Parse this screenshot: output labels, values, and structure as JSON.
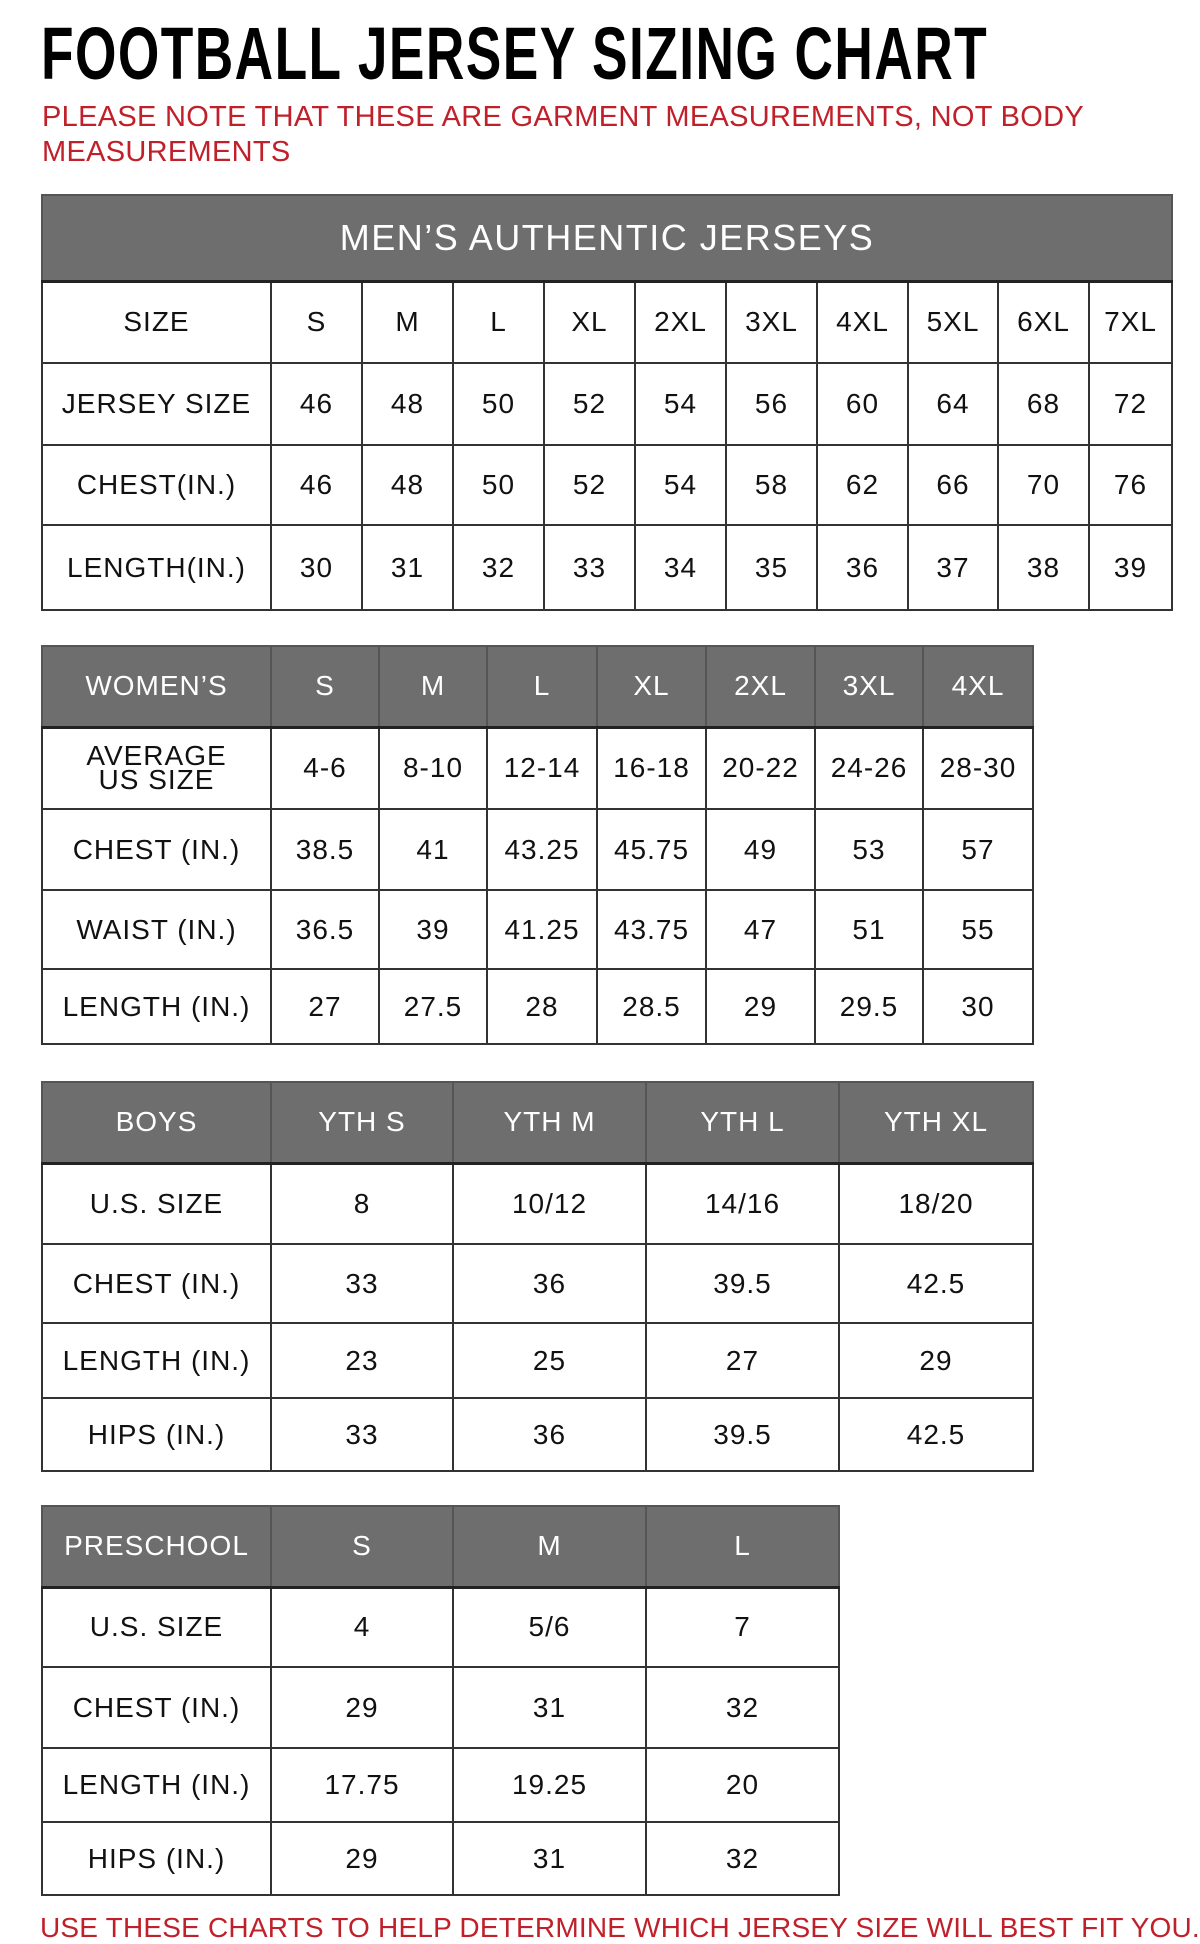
{
  "title": "FOOTBALL JERSEY SIZING CHART",
  "note": "PLEASE NOTE THAT THESE ARE GARMENT MEASUREMENTS, NOT BODY MEASUREMENTS",
  "footer": "USE THESE CHARTS TO HELP DETERMINE WHICH JERSEY SIZE WILL BEST FIT YOU.",
  "colors": {
    "header_bg": "#6e6e6e",
    "note_red": "#c0202a"
  },
  "tables": [
    {
      "banner": "MEN’S AUTHENTIC JERSEYS",
      "header": [
        "SIZE",
        "S",
        "M",
        "L",
        "XL",
        "2XL",
        "3XL",
        "4XL",
        "5XL",
        "6XL",
        "7XL"
      ],
      "header_style": "plain",
      "rows": [
        [
          "JERSEY SIZE",
          "46",
          "48",
          "50",
          "52",
          "54",
          "56",
          "60",
          "64",
          "68",
          "72"
        ],
        [
          "CHEST(IN.)",
          "46",
          "48",
          "50",
          "52",
          "54",
          "58",
          "62",
          "66",
          "70",
          "76"
        ],
        [
          "LENGTH(IN.)",
          "30",
          "31",
          "32",
          "33",
          "34",
          "35",
          "36",
          "37",
          "38",
          "39"
        ]
      ]
    },
    {
      "header": [
        "WOMEN’S",
        "S",
        "M",
        "L",
        "XL",
        "2XL",
        "3XL",
        "4XL"
      ],
      "header_style": "gray",
      "rows": [
        [
          "AVERAGE US SIZE",
          "4-6",
          "8-10",
          "12-14",
          "16-18",
          "20-22",
          "24-26",
          "28-30"
        ],
        [
          "CHEST (IN.)",
          "38.5",
          "41",
          "43.25",
          "45.75",
          "49",
          "53",
          "57"
        ],
        [
          "WAIST (IN.)",
          "36.5",
          "39",
          "41.25",
          "43.75",
          "47",
          "51",
          "55"
        ],
        [
          "LENGTH (IN.)",
          "27",
          "27.5",
          "28",
          "28.5",
          "29",
          "29.5",
          "30"
        ]
      ]
    },
    {
      "header": [
        "BOYS",
        "YTH S",
        "YTH M",
        "YTH L",
        "YTH XL"
      ],
      "header_style": "gray",
      "rows": [
        [
          "U.S. SIZE",
          "8",
          "10/12",
          "14/16",
          "18/20"
        ],
        [
          "CHEST (IN.)",
          "33",
          "36",
          "39.5",
          "42.5"
        ],
        [
          "LENGTH (IN.)",
          "23",
          "25",
          "27",
          "29"
        ],
        [
          "HIPS (IN.)",
          "33",
          "36",
          "39.5",
          "42.5"
        ]
      ]
    },
    {
      "header": [
        "PRESCHOOL",
        "S",
        "M",
        "L"
      ],
      "header_style": "gray",
      "rows": [
        [
          "U.S. SIZE",
          "4",
          "5/6",
          "7"
        ],
        [
          "CHEST (IN.)",
          "29",
          "31",
          "32"
        ],
        [
          "LENGTH (IN.)",
          "17.75",
          "19.25",
          "20"
        ],
        [
          "HIPS (IN.)",
          "29",
          "31",
          "32"
        ]
      ]
    }
  ]
}
